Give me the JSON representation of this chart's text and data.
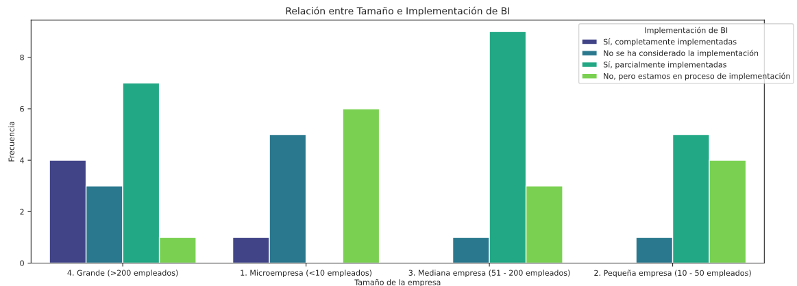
{
  "chart_data": {
    "type": "bar",
    "title": "Relación entre Tamaño e Implementación de BI",
    "xlabel": "Tamaño de la empresa",
    "ylabel": "Frecuencia",
    "legend_title": "Implementación de BI",
    "categories": [
      "4. Grande (>200 empleados)",
      "1. Microempresa (<10 empleados)",
      "3. Mediana empresa (51 - 200 empleados)",
      "2. Pequeña empresa (10 - 50 empleados)"
    ],
    "series": [
      {
        "name": "Sí, completamente implementadas",
        "color": "#414487",
        "values": [
          4,
          1,
          null,
          null
        ]
      },
      {
        "name": "No se ha considerado la implementación",
        "color": "#2a788e",
        "values": [
          3,
          5,
          1,
          1
        ]
      },
      {
        "name": "Sí, parcialmente implementadas",
        "color": "#22a884",
        "values": [
          7,
          null,
          9,
          5
        ]
      },
      {
        "name": "No, pero estamos en proceso de implementación",
        "color": "#7ad151",
        "values": [
          1,
          6,
          3,
          4
        ]
      }
    ],
    "ylim": [
      0,
      9.45
    ],
    "yticks": [
      0,
      2,
      4,
      6,
      8
    ],
    "legend": "top right",
    "grid": false
  }
}
